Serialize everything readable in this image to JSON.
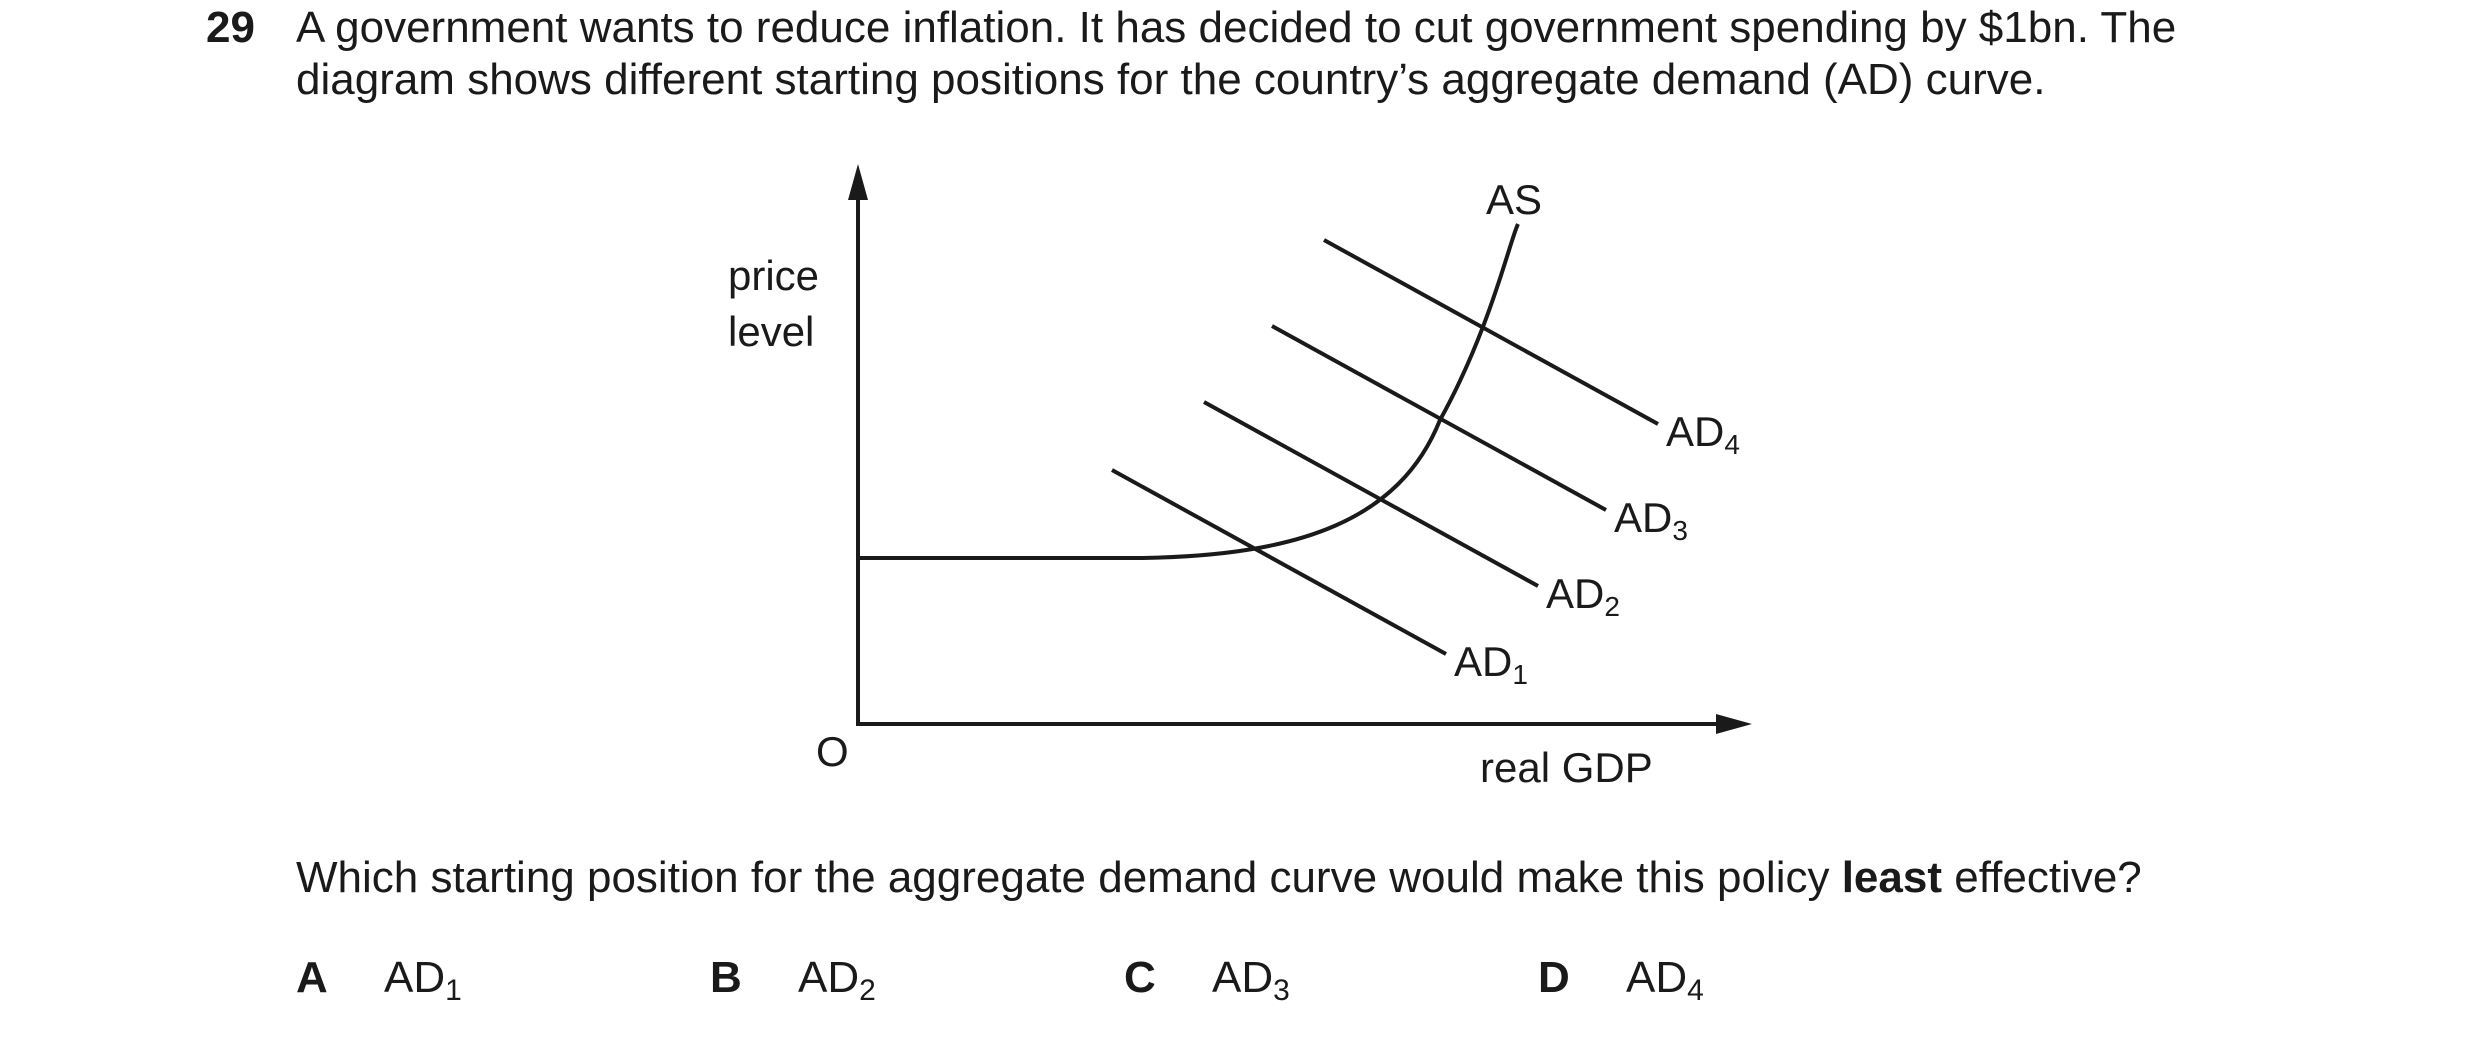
{
  "question": {
    "number": "29",
    "line1": "A government wants to reduce inflation. It has decided to cut government spending by $1bn. The",
    "line2": "diagram shows different starting positions for the country’s aggregate demand (AD) curve."
  },
  "diagram": {
    "y_axis_label_line1": "price",
    "y_axis_label_line2": "level",
    "x_axis_label": "real GDP",
    "origin_label": "O",
    "as_label": "AS",
    "ad_curves": [
      {
        "base": "AD",
        "sub": "1"
      },
      {
        "base": "AD",
        "sub": "2"
      },
      {
        "base": "AD",
        "sub": "3"
      },
      {
        "base": "AD",
        "sub": "4"
      }
    ]
  },
  "prompt": {
    "before": "Which starting position for the aggregate demand curve would make this policy ",
    "bold": "least",
    "after": " effective?"
  },
  "options": [
    {
      "letter": "A",
      "base": "AD",
      "sub": "1"
    },
    {
      "letter": "B",
      "base": "AD",
      "sub": "2"
    },
    {
      "letter": "C",
      "base": "AD",
      "sub": "3"
    },
    {
      "letter": "D",
      "base": "AD",
      "sub": "4"
    }
  ],
  "colors": {
    "ink": "#1a1a1a",
    "background": "#ffffff"
  }
}
